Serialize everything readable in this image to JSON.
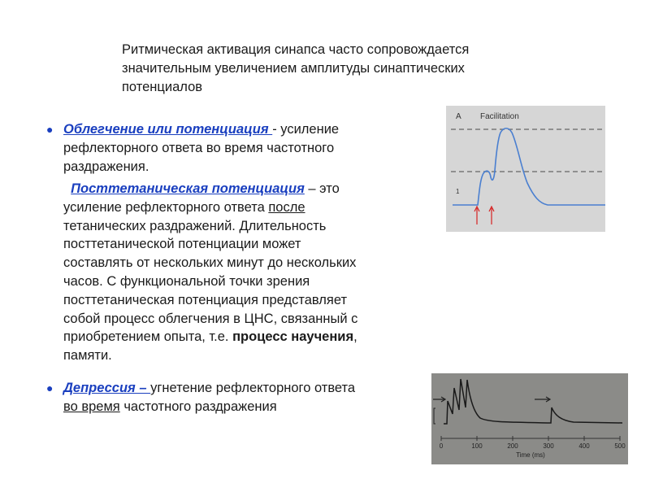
{
  "title": {
    "lines": [
      "Ритмическая активация синапса часто сопровождается",
      "значительным увеличением амплитуды синаптических",
      "потенциалов"
    ]
  },
  "para1": {
    "term": "Облегчение или потенциация ",
    "l1_rest": "- усиление",
    "l2": "рефлекторного ответа во время частотного",
    "l3": "раздражения."
  },
  "para2": {
    "term": "Посттетаническая потенциация",
    "l1_rest": " – это",
    "l2_a": "усиление рефлекторного ответа ",
    "l2_u": "после",
    "l3": "тетанических раздражений. Длительность",
    "l4": "посттетанической потенциации может",
    "l5": "составлять от нескольких минут до нескольких",
    "l6": "часов. С функциональной точки зрения",
    "l7": "посттетаническая потенциация представляет",
    "l8": "собой процесс облегчения в ЦНС, связанный с",
    "l9_a": "приобретением опыта, т.е. ",
    "l9_b": "процесс научения",
    "l9_c": ",",
    "l10": "памяти."
  },
  "para3": {
    "term": "Депрессия – ",
    "l1_rest": "угнетение рефлекторного ответа",
    "l2_u": "во время",
    "l2_rest": " частотного раздражения"
  },
  "colors": {
    "term": "#1a3fbf",
    "arrow": "#d62020",
    "trace": "#4a7fd0"
  },
  "figure_a": {
    "panel": "A",
    "label": "Facilitation",
    "trace_label": "1"
  },
  "figure_b": {
    "xlabel": "Time (ms)",
    "ticks": [
      "0",
      "100",
      "200",
      "300",
      "400",
      "500"
    ]
  }
}
